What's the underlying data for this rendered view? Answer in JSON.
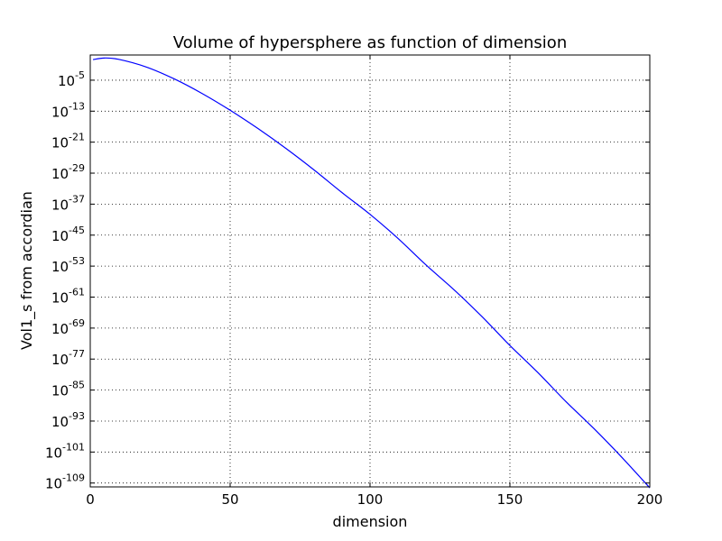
{
  "chart_data": {
    "type": "line",
    "title": "Volume of hypersphere as function of dimension",
    "xlabel": "dimension",
    "ylabel": "Vol1_s from accordian",
    "xlim": [
      0,
      200
    ],
    "ylim_log10": [
      -110,
      1.5
    ],
    "yscale": "log",
    "grid": true,
    "x_ticks": [
      0,
      50,
      100,
      150,
      200
    ],
    "x_tick_labels": [
      "0",
      "50",
      "100",
      "150",
      "200"
    ],
    "y_ticks": [
      {
        "base": "10",
        "exp": "-5"
      },
      {
        "base": "10",
        "exp": "-13"
      },
      {
        "base": "10",
        "exp": "-21"
      },
      {
        "base": "10",
        "exp": "-29"
      },
      {
        "base": "10",
        "exp": "-37"
      },
      {
        "base": "10",
        "exp": "-45"
      },
      {
        "base": "10",
        "exp": "-53"
      },
      {
        "base": "10",
        "exp": "-61"
      },
      {
        "base": "10",
        "exp": "-69"
      },
      {
        "base": "10",
        "exp": "-77"
      },
      {
        "base": "10",
        "exp": "-85"
      },
      {
        "base": "10",
        "exp": "-93"
      },
      {
        "base": "10",
        "exp": "-101"
      },
      {
        "base": "10",
        "exp": "-109"
      }
    ],
    "series": [
      {
        "color": "#0000ff",
        "x": [
          1,
          5,
          10,
          20,
          30,
          40,
          50,
          60,
          70,
          80,
          90,
          100,
          110,
          120,
          130,
          140,
          150,
          160,
          170,
          180,
          190,
          200
        ],
        "y": [
          "2e0",
          "5.26e0",
          "2.55e0",
          "2.58e-2",
          "2.19e-5",
          "3.6e-9",
          "1.73e-13",
          "3.1e-18",
          "2.2e-23",
          "6.6e-29",
          "9.3e-35",
          "2.37e-40",
          "1.4e-46",
          "2.0e-53",
          "8.0e-60",
          "9.4e-67",
          "3.2e-74",
          "3.3e-81",
          "1.1e-88",
          "1.2e-95",
          "4.3e-103",
          "5.6e-111"
        ]
      }
    ]
  }
}
